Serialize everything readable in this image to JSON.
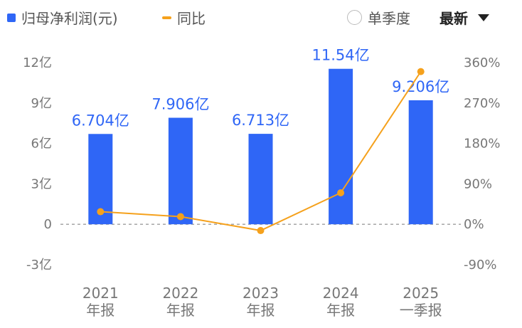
{
  "legend": {
    "bar_series": "归母净利润(元)",
    "line_series": "同比",
    "toggle_label": "单季度",
    "period_select": "最新"
  },
  "colors": {
    "bar": "#2f66f6",
    "line": "#f5a11c",
    "axis_text": "#777777",
    "zero_line": "#888888"
  },
  "chart_data": {
    "type": "bar",
    "categories": [
      [
        "2021",
        "年报"
      ],
      [
        "2022",
        "年报"
      ],
      [
        "2023",
        "年报"
      ],
      [
        "2024",
        "年报"
      ],
      [
        "2025",
        "一季报"
      ]
    ],
    "series": [
      {
        "name": "归母净利润(元)",
        "type": "bar",
        "axis": "left",
        "values": [
          6.704,
          7.906,
          6.713,
          11.54,
          9.206
        ],
        "labels": [
          "6.704亿",
          "7.906亿",
          "6.713亿",
          "11.54亿",
          "9.206亿"
        ]
      },
      {
        "name": "同比",
        "type": "line",
        "axis": "right",
        "values": [
          28,
          17,
          -14,
          70,
          340
        ]
      }
    ],
    "y_left": {
      "ticks": [
        12,
        9,
        6,
        3,
        0,
        -3
      ],
      "tick_labels": [
        "12亿",
        "9亿",
        "6亿",
        "3亿",
        "0",
        "-3亿"
      ],
      "range": [
        -3,
        12
      ]
    },
    "y_right": {
      "ticks": [
        360,
        270,
        180,
        90,
        0,
        -90
      ],
      "tick_labels": [
        "360%",
        "270%",
        "180%",
        "90%",
        "0%",
        "-90%"
      ],
      "range": [
        -90,
        360
      ]
    },
    "grid": false,
    "legend_position": "top-left"
  }
}
